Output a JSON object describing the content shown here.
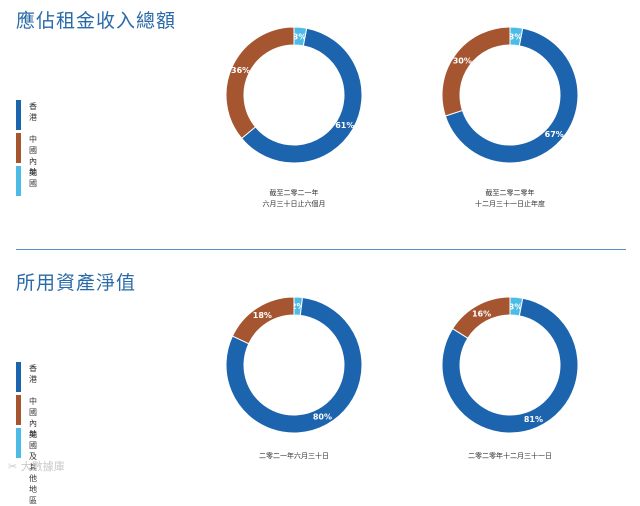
{
  "sections": [
    {
      "title": "應佔租金收入總額",
      "legend": [
        {
          "label": "香港",
          "color": "#1c64ae"
        },
        {
          "label": "中國內地",
          "color": "#a55530"
        },
        {
          "label": "美國",
          "color": "#4cbce6"
        }
      ]
    },
    {
      "title": "所用資產淨值",
      "legend": [
        {
          "label": "香港",
          "color": "#1c64ae"
        },
        {
          "label": "中國內地",
          "color": "#a55530"
        },
        {
          "label": "美國及其他地區",
          "color": "#4cbce6"
        }
      ]
    }
  ],
  "chart_data": [
    {
      "type": "pie",
      "categories": [
        "香港",
        "中國內地",
        "美國"
      ],
      "values": [
        61,
        36,
        3
      ],
      "value_labels": [
        "61%",
        "36%",
        "3%"
      ],
      "caption": [
        "截至二零二一年",
        "六月三十日止六個月"
      ]
    },
    {
      "type": "pie",
      "categories": [
        "香港",
        "中國內地",
        "美國"
      ],
      "values": [
        67,
        30,
        3
      ],
      "value_labels": [
        "67%",
        "30%",
        "3%"
      ],
      "caption": [
        "截至二零二零年",
        "十二月三十一日止年度"
      ]
    },
    {
      "type": "pie",
      "categories": [
        "香港",
        "中國內地",
        "美國及其他地區"
      ],
      "values": [
        80,
        18,
        2
      ],
      "value_labels": [
        "80%",
        "18%",
        "2%"
      ],
      "caption": [
        "二零二一年六月三十日"
      ]
    },
    {
      "type": "pie",
      "categories": [
        "香港",
        "中國內地",
        "美國及其他地區"
      ],
      "values": [
        81,
        16,
        3
      ],
      "value_labels": [
        "81%",
        "16%",
        "3%"
      ],
      "caption": [
        "二零二零年十二月三十一日"
      ]
    }
  ],
  "colors": [
    "#1c64ae",
    "#a55530",
    "#4cbce6"
  ],
  "watermark": "大數據庫"
}
